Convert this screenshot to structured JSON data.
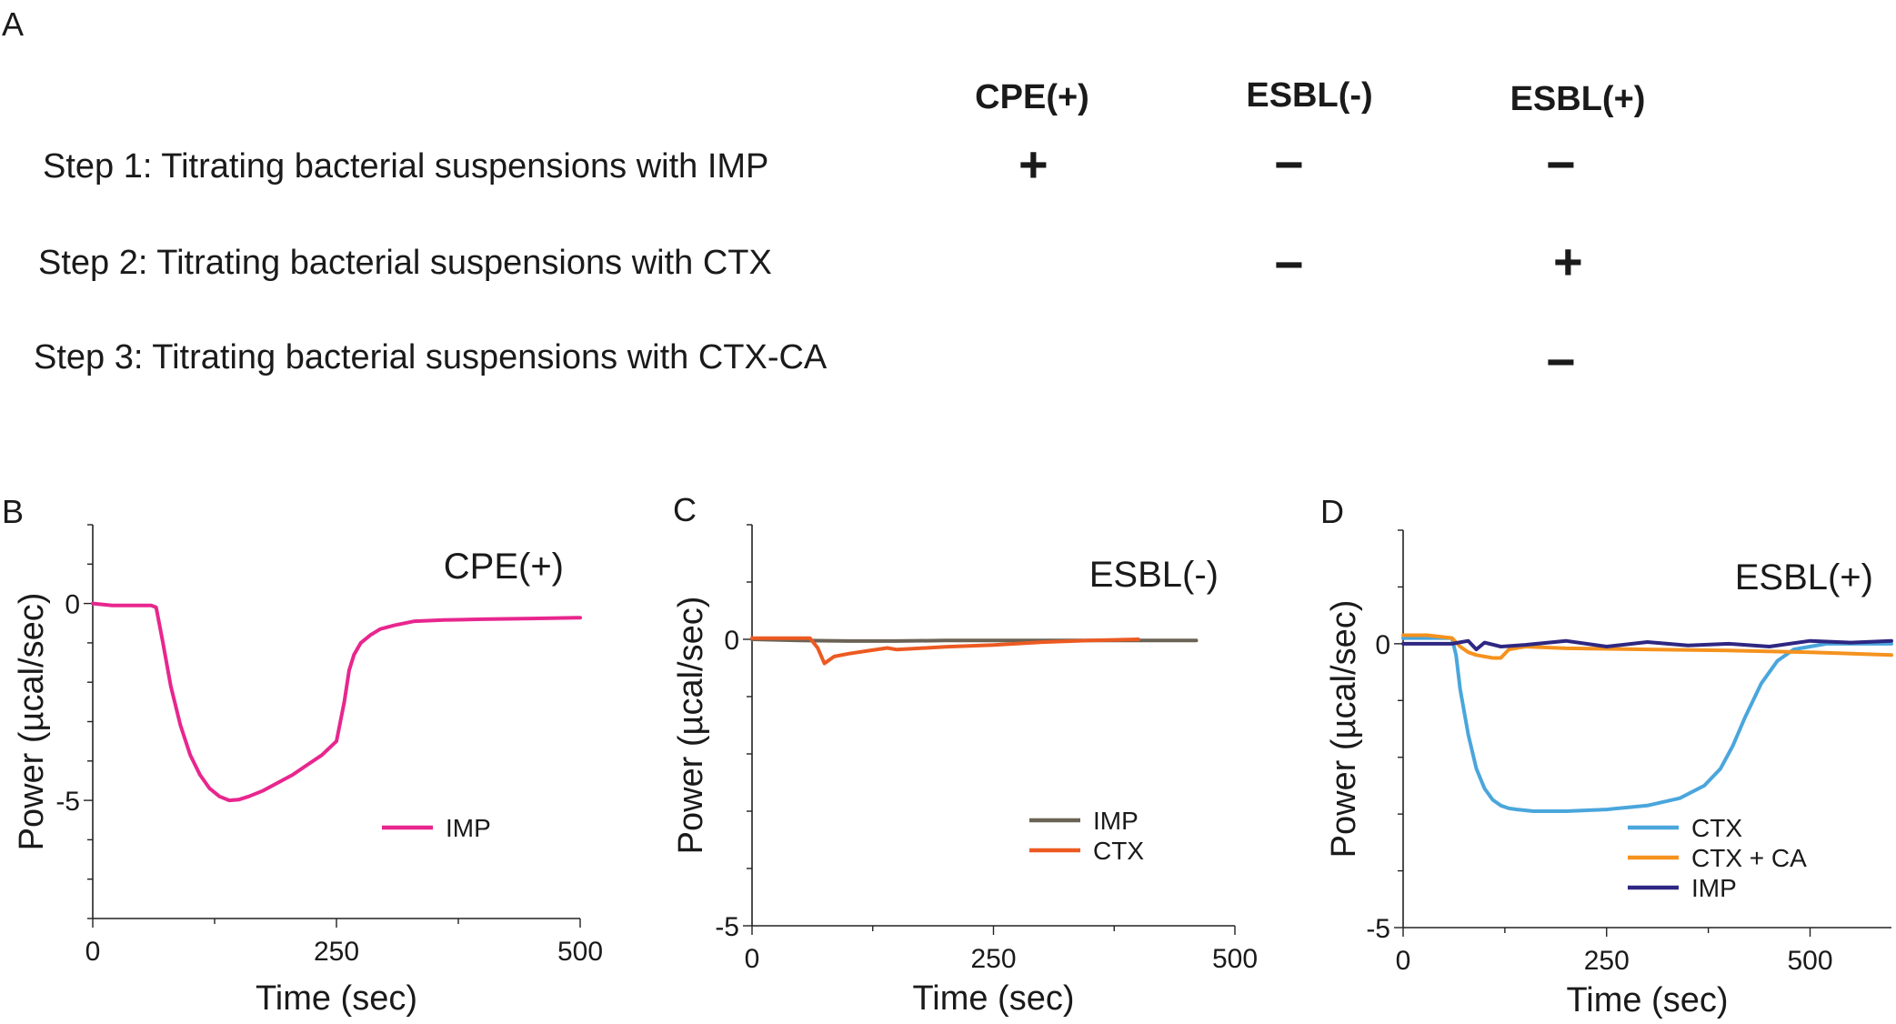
{
  "table": {
    "panel_label": "A",
    "columns": [
      "CPE(+)",
      "ESBL(-)",
      "ESBL(+)"
    ],
    "rows": [
      {
        "label": "Step 1: Titrating bacterial suspensions with IMP",
        "signs": [
          "+",
          "−",
          "−"
        ]
      },
      {
        "label": "Step 2: Titrating bacterial suspensions with CTX",
        "signs": [
          "",
          "−",
          "+"
        ]
      },
      {
        "label": "Step 3: Titrating bacterial suspensions with CTX-CA",
        "signs": [
          "",
          "",
          "−"
        ]
      }
    ]
  },
  "chart_data": [
    {
      "panel": "B",
      "type": "line",
      "title": "CPE(+)",
      "xlabel": "Time (sec)",
      "ylabel": "Power (µcal/sec)",
      "xlim": [
        0,
        500
      ],
      "ylim": [
        -8,
        2
      ],
      "xticks": [
        0,
        250,
        500
      ],
      "yticks": [
        -5,
        0
      ],
      "legend_position": "bottom-right",
      "series": [
        {
          "name": "IMP",
          "color": "#e8268e",
          "x": [
            0,
            20,
            40,
            60,
            65,
            72,
            80,
            90,
            100,
            110,
            120,
            130,
            140,
            150,
            160,
            175,
            190,
            205,
            220,
            235,
            250,
            258,
            263,
            268,
            275,
            285,
            295,
            310,
            330,
            360,
            400,
            450,
            500
          ],
          "y": [
            0,
            -0.05,
            -0.05,
            -0.05,
            -0.1,
            -1.0,
            -2.1,
            -3.1,
            -3.85,
            -4.35,
            -4.7,
            -4.9,
            -5.0,
            -4.98,
            -4.9,
            -4.75,
            -4.55,
            -4.35,
            -4.1,
            -3.85,
            -3.5,
            -2.5,
            -1.7,
            -1.3,
            -1.0,
            -0.8,
            -0.65,
            -0.55,
            -0.45,
            -0.42,
            -0.4,
            -0.38,
            -0.36
          ]
        }
      ]
    },
    {
      "panel": "C",
      "type": "line",
      "title": "ESBL(-)",
      "xlabel": "Time (sec)",
      "ylabel": "Power (µcal/sec)",
      "xlim": [
        0,
        500
      ],
      "ylim": [
        -5,
        2
      ],
      "xticks": [
        0,
        250,
        500
      ],
      "yticks": [
        -5,
        0
      ],
      "legend_position": "bottom-right",
      "series": [
        {
          "name": "IMP",
          "color": "#6b6355",
          "x": [
            0,
            50,
            100,
            150,
            200,
            250,
            300,
            350,
            400,
            460
          ],
          "y": [
            0,
            -0.02,
            -0.03,
            -0.03,
            -0.02,
            -0.02,
            -0.02,
            -0.02,
            -0.02,
            -0.02
          ]
        },
        {
          "name": "CTX",
          "color": "#ec5a22",
          "x": [
            0,
            30,
            60,
            68,
            75,
            85,
            100,
            120,
            140,
            150,
            200,
            250,
            300,
            350,
            400
          ],
          "y": [
            0.02,
            0.02,
            0.02,
            -0.15,
            -0.42,
            -0.3,
            -0.25,
            -0.2,
            -0.15,
            -0.18,
            -0.13,
            -0.1,
            -0.05,
            -0.02,
            0
          ]
        }
      ]
    },
    {
      "panel": "D",
      "type": "line",
      "title": "ESBL(+)",
      "xlabel": "Time (sec)",
      "ylabel": "Power (µcal/sec)",
      "xlim": [
        0,
        600
      ],
      "ylim": [
        -5,
        2
      ],
      "xticks": [
        0,
        250,
        500
      ],
      "yticks": [
        -5,
        0
      ],
      "legend_position": "bottom-right",
      "series": [
        {
          "name": "CTX",
          "color": "#4aa6dc",
          "x": [
            0,
            30,
            60,
            65,
            70,
            80,
            90,
            100,
            110,
            120,
            130,
            140,
            160,
            200,
            250,
            300,
            340,
            370,
            390,
            405,
            420,
            440,
            460,
            480,
            520,
            560,
            600
          ],
          "y": [
            0.1,
            0.1,
            0.1,
            -0.2,
            -0.8,
            -1.6,
            -2.2,
            -2.55,
            -2.75,
            -2.85,
            -2.9,
            -2.92,
            -2.95,
            -2.95,
            -2.92,
            -2.85,
            -2.72,
            -2.5,
            -2.2,
            -1.8,
            -1.3,
            -0.7,
            -0.3,
            -0.1,
            0,
            0,
            0
          ]
        },
        {
          "name": "CTX + CA",
          "color": "#f5921e",
          "x": [
            0,
            30,
            60,
            70,
            80,
            90,
            110,
            120,
            130,
            150,
            200,
            300,
            400,
            500,
            600
          ],
          "y": [
            0.15,
            0.15,
            0.1,
            -0.05,
            -0.15,
            -0.2,
            -0.25,
            -0.25,
            -0.1,
            -0.05,
            -0.08,
            -0.1,
            -0.12,
            -0.15,
            -0.2
          ]
        },
        {
          "name": "IMP",
          "color": "#2e2782",
          "x": [
            0,
            60,
            80,
            90,
            100,
            120,
            150,
            200,
            250,
            300,
            350,
            400,
            450,
            500,
            550,
            600
          ],
          "y": [
            0,
            0,
            0.05,
            -0.1,
            0.02,
            -0.05,
            -0.02,
            0.05,
            -0.05,
            0.03,
            -0.03,
            0,
            -0.05,
            0.05,
            0.02,
            0.05
          ]
        }
      ]
    }
  ]
}
